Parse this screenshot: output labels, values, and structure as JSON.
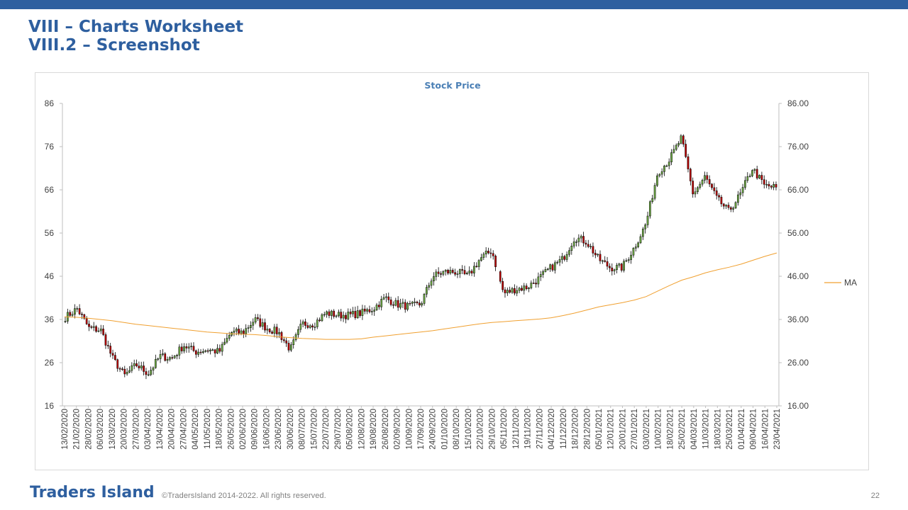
{
  "slide": {
    "title_line1": "VIII – Charts Worksheet",
    "title_line2": "VIII.2 – Screenshot",
    "brand": "Traders Island",
    "copyright": "©TradersIsland 2014-2022. All rights reserved.",
    "page_number": "22",
    "accent_color": "#2e5f9f"
  },
  "chart_data": {
    "type": "candlestick",
    "title": "Stock Price",
    "y_left_ticks": [
      "16",
      "26",
      "36",
      "46",
      "56",
      "66",
      "76",
      "86"
    ],
    "y_right_ticks": [
      "16.00",
      "26.00",
      "36.00",
      "46.00",
      "56.00",
      "66.00",
      "76.00",
      "86.00"
    ],
    "ylim": [
      16,
      86
    ],
    "x_tick_labels": [
      "13/02/2020",
      "21/02/2020",
      "28/02/2020",
      "06/03/2020",
      "13/03/2020",
      "20/03/2020",
      "27/03/2020",
      "03/04/2020",
      "13/04/2020",
      "20/04/2020",
      "27/04/2020",
      "04/05/2020",
      "11/05/2020",
      "18/05/2020",
      "26/05/2020",
      "02/06/2020",
      "09/06/2020",
      "16/06/2020",
      "23/06/2020",
      "30/06/2020",
      "08/07/2020",
      "15/07/2020",
      "22/07/2020",
      "29/07/2020",
      "05/08/2020",
      "12/08/2020",
      "19/08/2020",
      "26/08/2020",
      "02/09/2020",
      "10/09/2020",
      "17/09/2020",
      "24/09/2020",
      "01/10/2020",
      "08/10/2020",
      "15/10/2020",
      "22/10/2020",
      "29/10/2020",
      "05/11/2020",
      "12/11/2020",
      "19/11/2020",
      "27/11/2020",
      "04/12/2020",
      "11/12/2020",
      "18/12/2020",
      "28/12/2020",
      "05/01/2021",
      "12/01/2021",
      "20/01/2021",
      "27/01/2021",
      "03/02/2021",
      "10/02/2021",
      "18/02/2021",
      "25/02/2021",
      "04/03/2021",
      "11/03/2021",
      "18/03/2021",
      "25/03/2021",
      "01/04/2021",
      "09/04/2021",
      "16/04/2021",
      "23/04/2021"
    ],
    "close_profile": [
      36.5,
      38.5,
      34,
      33.5,
      27,
      23,
      25.5,
      23.5,
      27.5,
      27,
      30,
      28.5,
      29,
      28.5,
      33,
      33,
      36,
      34,
      33,
      29,
      35,
      35,
      37.5,
      37,
      37,
      37.5,
      38.5,
      41,
      39.5,
      39,
      39.5,
      46,
      47,
      47,
      46,
      50,
      52,
      42,
      43,
      43.5,
      45.5,
      48,
      50,
      55,
      54,
      50,
      48,
      48,
      52.5,
      58,
      70,
      73,
      78,
      65,
      69,
      64,
      61,
      65,
      71,
      67,
      66.5
    ],
    "ma_profile": [
      36.6,
      36.5,
      36.3,
      36.0,
      35.7,
      35.3,
      34.9,
      34.6,
      34.3,
      34.0,
      33.7,
      33.4,
      33.1,
      32.9,
      32.7,
      32.6,
      32.5,
      32.3,
      32.0,
      31.8,
      31.6,
      31.5,
      31.4,
      31.4,
      31.4,
      31.5,
      31.9,
      32.2,
      32.5,
      32.8,
      33.1,
      33.4,
      33.8,
      34.2,
      34.6,
      35.0,
      35.3,
      35.5,
      35.7,
      35.9,
      36.1,
      36.4,
      36.9,
      37.5,
      38.2,
      38.9,
      39.4,
      39.9,
      40.5,
      41.3,
      42.6,
      43.9,
      45.1,
      45.9,
      46.8,
      47.5,
      48.1,
      48.8,
      49.7,
      50.6,
      51.4
    ],
    "series": [
      {
        "name": "MA",
        "color": "#f0a030"
      }
    ],
    "up_color": "#70ad47",
    "down_color": "#c00000",
    "grid": false,
    "legend_position": "right"
  }
}
